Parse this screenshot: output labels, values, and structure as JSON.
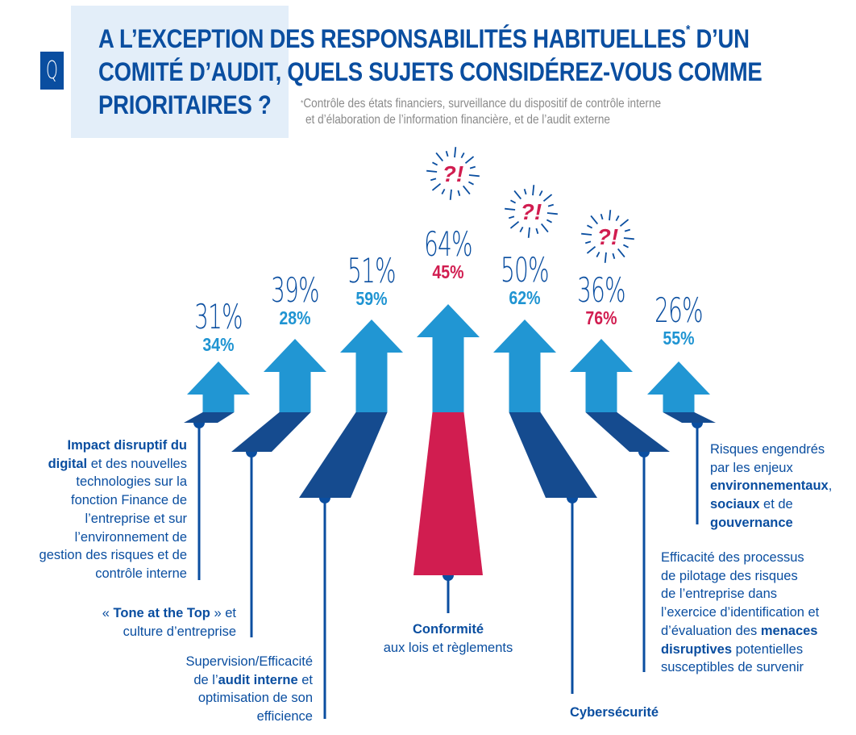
{
  "header": {
    "q_badge": "Q",
    "title_line1_a": "A L’EXCEPTION DES RESPONSABILITÉS HABITUELLES",
    "title_star": "*",
    "title_line1_b": " D’UN",
    "title_line2": "COMITÉ D’AUDIT, QUELS SUJETS CONSIDÉREZ-VOUS COMME",
    "title_line3": "PRIORITAIRES ?",
    "footnote_star": "*",
    "footnote_line1": "Contrôle des états financiers, surveillance du dispositif de contrôle interne",
    "footnote_line2": "et d’élaboration de l’information financière, et de l’audit externe"
  },
  "colors": {
    "navy": "#0a4ea0",
    "shadow": "#154b8f",
    "arrow": "#2196d3",
    "light_blue_text": "#1f94d2",
    "crimson": "#d11d50",
    "title_bg": "#e3eef9"
  },
  "chart_data": {
    "type": "bar",
    "title": "A L’EXCEPTION DES RESPONSABILITÉS HABITUELLES* D’UN COMITÉ D’AUDIT, QUELS SUJETS CONSIDÉREZ-VOUS COMME PRIORITAIRES ?",
    "xlabel": "",
    "ylabel": "",
    "ylim": [
      0,
      100
    ],
    "categories": [
      "Impact disruptif du digital",
      "« Tone at the Top » et culture d’entreprise",
      "Supervision/Efficacité de l’audit interne",
      "Conformité aux lois et règlements",
      "Cybersécurité",
      "Efficacité des processus de pilotage des risques",
      "Risques engendrés par les enjeux ESG"
    ],
    "series": [
      {
        "name": "main",
        "values": [
          31,
          39,
          51,
          64,
          50,
          36,
          26
        ],
        "labels": [
          "31%",
          "39%",
          "51%",
          "64%",
          "50%",
          "36%",
          "26%"
        ]
      },
      {
        "name": "secondary",
        "values": [
          34,
          28,
          59,
          45,
          62,
          76,
          55
        ],
        "labels": [
          "34%",
          "28%",
          "59%",
          "45%",
          "62%",
          "76%",
          "55%"
        ]
      }
    ],
    "highlighted": [
      false,
      false,
      false,
      true,
      false,
      true,
      false
    ],
    "alert_icons": [
      false,
      false,
      false,
      true,
      true,
      true,
      false
    ],
    "alert_glyph": "?!"
  },
  "labels": {
    "digital": {
      "b1": "Impact disruptif du",
      "b2": "digital",
      "t2": " et des nouvelles",
      "t3": "technologies sur la",
      "t4": "fonction Finance de",
      "t5": "l’entreprise et sur",
      "t6": "l’environnement de",
      "t7": "gestion des risques et de",
      "t8": "contrôle interne"
    },
    "tone": {
      "t1a": "« ",
      "b1": "Tone at the Top",
      "t1b": " » et",
      "t2": "culture d’entreprise"
    },
    "audit": {
      "t1": "Supervision/Efficacité",
      "t2a": "de l’",
      "b2": "audit interne",
      "t2b": " et",
      "t3": "optimisation de son",
      "t4": "efficience"
    },
    "conformite": {
      "b1": "Conformité",
      "t2": "aux lois et règlements"
    },
    "cyber": {
      "b1": "Cybersécurité"
    },
    "pilotage": {
      "t1": "Efficacité des processus",
      "t2": "de pilotage des risques",
      "t3": "de l’entreprise dans",
      "t4": "l’exercice d’identification et",
      "t5a": "d’évaluation des ",
      "b5": "menaces",
      "b6": "disruptives",
      "t6": " potentielles",
      "t7": "susceptibles de survenir"
    },
    "esg": {
      "t1": "Risques engendrés",
      "t2": "par les enjeux",
      "b3": "environnementaux",
      "t3": ",",
      "b4": "sociaux",
      "t4": " et de",
      "b5": "gouvernance"
    }
  }
}
